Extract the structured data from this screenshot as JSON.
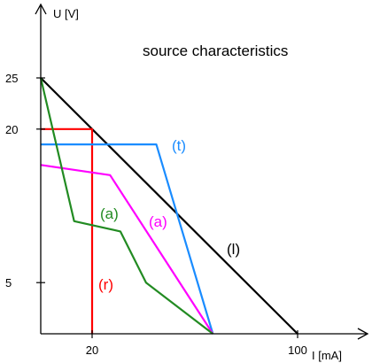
{
  "chart_data": {
    "type": "line",
    "title": "source characteristics",
    "xlabel": "I [mA]",
    "ylabel": "U [V]",
    "xlim": [
      0,
      100
    ],
    "ylim": [
      0,
      25
    ],
    "x_ticks": [
      {
        "value": 20,
        "label": "20"
      },
      {
        "value": 100,
        "label": "100"
      }
    ],
    "y_ticks": [
      {
        "value": 25,
        "label": "25"
      },
      {
        "value": 20,
        "label": "20"
      },
      {
        "value": 5,
        "label": "5"
      }
    ],
    "grid": false,
    "series": [
      {
        "name": "(l)",
        "color": "#000000",
        "points": [
          [
            0,
            25
          ],
          [
            100,
            0
          ]
        ]
      },
      {
        "name": "(r)",
        "color": "#ff0000",
        "points": [
          [
            0,
            20
          ],
          [
            20,
            20
          ],
          [
            20,
            0
          ]
        ]
      },
      {
        "name": "(t)",
        "color": "#1a8cff",
        "points": [
          [
            0,
            18.5
          ],
          [
            45,
            18.5
          ],
          [
            67,
            0
          ]
        ]
      },
      {
        "name": "(a)",
        "color": "#ff00ff",
        "points": [
          [
            0,
            16.5
          ],
          [
            27,
            15.5
          ],
          [
            67,
            0
          ]
        ]
      },
      {
        "name": "(a)",
        "color": "#228b22",
        "points": [
          [
            0,
            25
          ],
          [
            13,
            11
          ],
          [
            31,
            10
          ],
          [
            41,
            5
          ],
          [
            67,
            0
          ]
        ]
      }
    ]
  }
}
